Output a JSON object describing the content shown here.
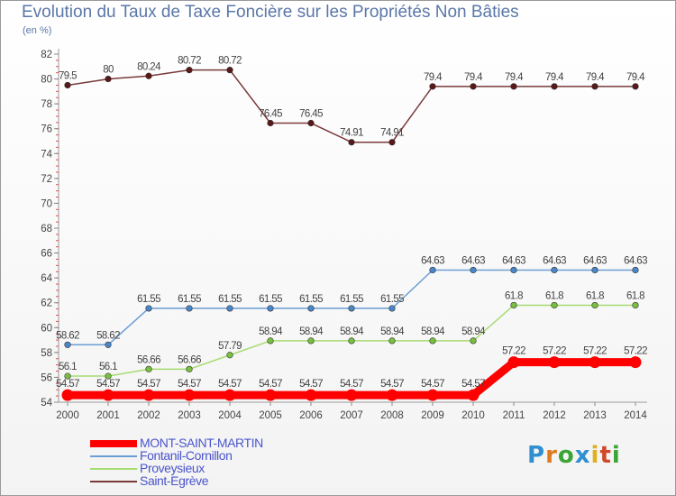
{
  "title": "Evolution du Taux de Taxe Foncière sur les Propriétés Non Bâties",
  "subtitle": "(en %)",
  "logo": {
    "text": "Proxiti",
    "letters": [
      {
        "ch": "P",
        "color": "#2f8fd0"
      },
      {
        "ch": "r",
        "color": "#e07a1f"
      },
      {
        "ch": "o",
        "color": "#3aa535"
      },
      {
        "ch": "x",
        "color": "#2f8fd0"
      },
      {
        "ch": "i",
        "color": "#e0b020"
      },
      {
        "ch": "t",
        "color": "#d04a2a"
      },
      {
        "ch": "i",
        "color": "#3aa535"
      }
    ]
  },
  "chart_data": {
    "type": "line",
    "title": "Evolution du Taux de Taxe Foncière sur les Propriétés Non Bâties",
    "ylabel": "(en %)",
    "xlabel": "",
    "ylim": [
      54,
      82
    ],
    "yticks": [
      54,
      56,
      58,
      60,
      62,
      64,
      66,
      68,
      70,
      72,
      74,
      76,
      78,
      80,
      82
    ],
    "categories": [
      "2000",
      "2001",
      "2002",
      "2003",
      "2004",
      "2005",
      "2006",
      "2007",
      "2008",
      "2009",
      "2010",
      "2011",
      "2012",
      "2013",
      "2014"
    ],
    "grid": false,
    "legend": "bottom-left",
    "series": [
      {
        "name": "MONT-SAINT-MARTIN",
        "color": "#ff0000",
        "marker": "#ff0000",
        "width": 9,
        "values": [
          54.57,
          54.57,
          54.57,
          54.57,
          54.57,
          54.57,
          54.57,
          54.57,
          54.57,
          54.57,
          54.57,
          57.22,
          57.22,
          57.22,
          57.22
        ],
        "labels": [
          "54.57",
          "54.57",
          "54.57",
          "54.57",
          "54.57",
          "54.57",
          "54.57",
          "54.57",
          "54.57",
          "54.57",
          "54.57",
          "57.22",
          "57.22",
          "57.22",
          "57.22"
        ]
      },
      {
        "name": "Fontanil-Cornillon",
        "color": "#6b9ed3",
        "marker": "#4a86c8",
        "width": 1.5,
        "values": [
          58.62,
          58.62,
          61.55,
          61.55,
          61.55,
          61.55,
          61.55,
          61.55,
          61.55,
          64.63,
          64.63,
          64.63,
          64.63,
          64.63,
          64.63
        ],
        "labels": [
          "58.62",
          "58.62",
          "61.55",
          "61.55",
          "61.55",
          "61.55",
          "61.55",
          "61.55",
          "61.55",
          "64.63",
          "64.63",
          "64.63",
          "64.63",
          "64.63",
          "64.63"
        ]
      },
      {
        "name": "Proveysieux",
        "color": "#a6dc70",
        "marker": "#78c040",
        "width": 1.5,
        "values": [
          56.1,
          56.1,
          56.66,
          56.66,
          57.79,
          58.94,
          58.94,
          58.94,
          58.94,
          58.94,
          58.94,
          61.8,
          61.8,
          61.8,
          61.8
        ],
        "labels": [
          "56.1",
          "56.1",
          "56.66",
          "56.66",
          "57.79",
          "58.94",
          "58.94",
          "58.94",
          "58.94",
          "58.94",
          "58.94",
          "61.8",
          "61.8",
          "61.8",
          "61.8"
        ]
      },
      {
        "name": "Saint-Egrève",
        "color": "#7a3a3a",
        "marker": "#5a1818",
        "width": 1.5,
        "values": [
          79.5,
          80,
          80.24,
          80.72,
          80.72,
          76.45,
          76.45,
          74.91,
          74.91,
          79.4,
          79.4,
          79.4,
          79.4,
          79.4,
          79.4
        ],
        "labels": [
          "79.5",
          "80",
          "80.24",
          "80.72",
          "80.72",
          "76.45",
          "76.45",
          "74.91",
          "74.91",
          "79.4",
          "79.4",
          "79.4",
          "79.4",
          "79.4",
          "79.4"
        ]
      }
    ]
  }
}
